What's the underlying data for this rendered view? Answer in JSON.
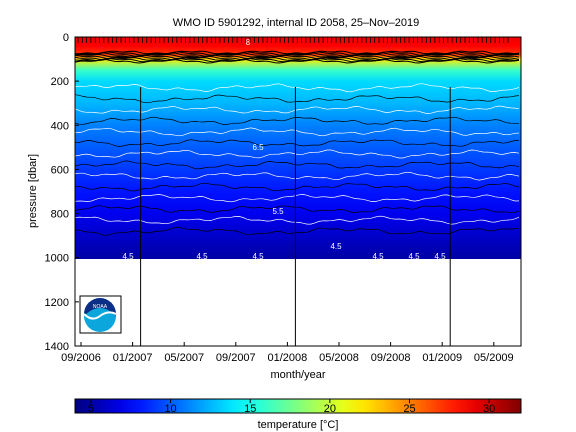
{
  "chart_data": {
    "type": "heatmap",
    "title": "WMO ID 5901292, internal ID 2058, 25–Nov–2019",
    "xlabel": "month/year",
    "ylabel": "pressure [dbar]",
    "colorbar_label": "temperature [°C]",
    "x_ticks": [
      "09/2006",
      "01/2007",
      "05/2007",
      "09/2007",
      "01/2008",
      "05/2008",
      "09/2008",
      "01/2009",
      "05/2009"
    ],
    "y_ticks": [
      0,
      200,
      400,
      600,
      800,
      1000,
      1200,
      1400
    ],
    "ylim": [
      0,
      1400
    ],
    "y_reversed": true,
    "colorbar_ticks": [
      5,
      10,
      15,
      20,
      25,
      30
    ],
    "colorbar_range": [
      4,
      32
    ],
    "colormap": "jet",
    "data_max_pressure": 1000,
    "year_boundaries": [
      "01/2007",
      "01/2008",
      "01/2009"
    ],
    "time_range": [
      "08/2006",
      "08/2009"
    ],
    "profile": {
      "pressure": [
        0,
        40,
        80,
        100,
        150,
        200,
        300,
        400,
        500,
        600,
        700,
        800,
        900,
        1000
      ],
      "temperature": [
        29,
        28.5,
        27,
        22,
        16,
        13.5,
        12.5,
        11,
        10,
        9,
        8,
        7,
        6,
        5
      ]
    },
    "contour_labels": [
      "4.5",
      "4.5",
      "4.5",
      "4.5",
      "4.5",
      "4.5",
      "4.5",
      "5.5",
      "6.5",
      "8"
    ]
  },
  "logo": {
    "text": "NOAA"
  }
}
